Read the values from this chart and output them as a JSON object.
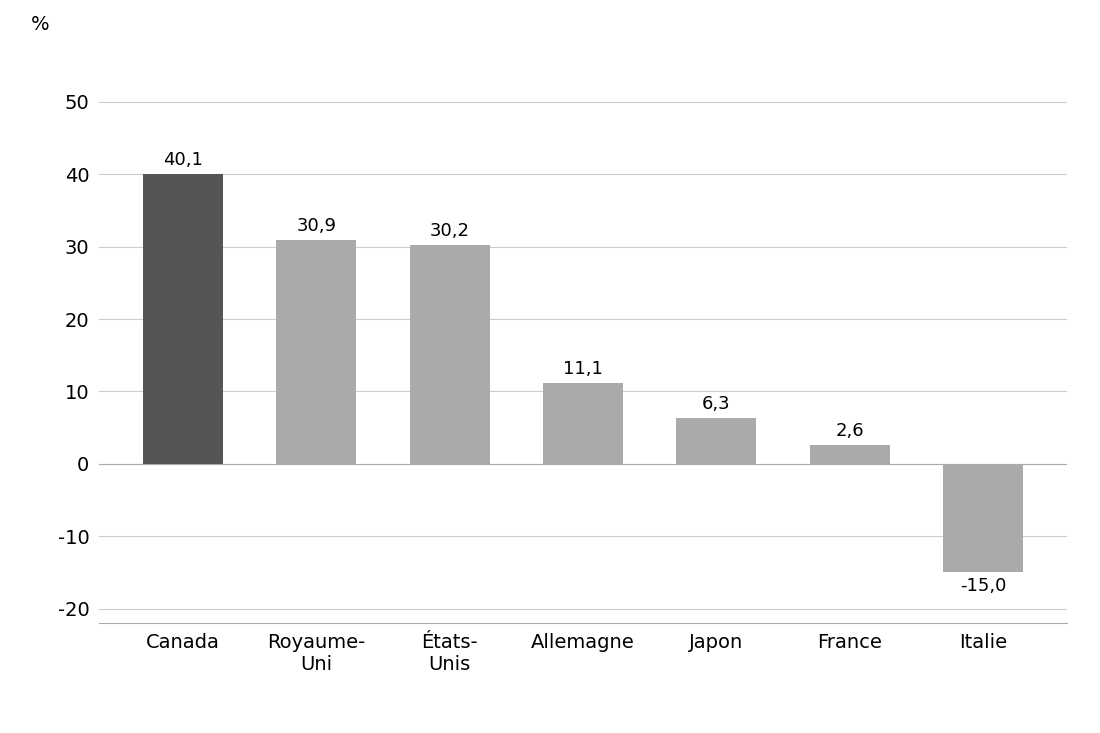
{
  "categories": [
    "Canada",
    "Royaume-\nUni",
    "États-\nUnis",
    "Allemagne",
    "Japon",
    "France",
    "Italie"
  ],
  "values": [
    40.1,
    30.9,
    30.2,
    11.1,
    6.3,
    2.6,
    -15.0
  ],
  "bar_colors": [
    "#555555",
    "#aaaaaa",
    "#aaaaaa",
    "#aaaaaa",
    "#aaaaaa",
    "#aaaaaa",
    "#aaaaaa"
  ],
  "label_values": [
    "40,1",
    "30,9",
    "30,2",
    "11,1",
    "6,3",
    "2,6",
    "-15,0"
  ],
  "ylabel_text": "%",
  "ylim": [
    -22,
    57
  ],
  "yticks": [
    -20,
    -10,
    0,
    10,
    20,
    30,
    40,
    50
  ],
  "grid_color": "#cccccc",
  "background_color": "#ffffff",
  "label_fontsize": 13,
  "tick_fontsize": 14,
  "bar_width": 0.6
}
